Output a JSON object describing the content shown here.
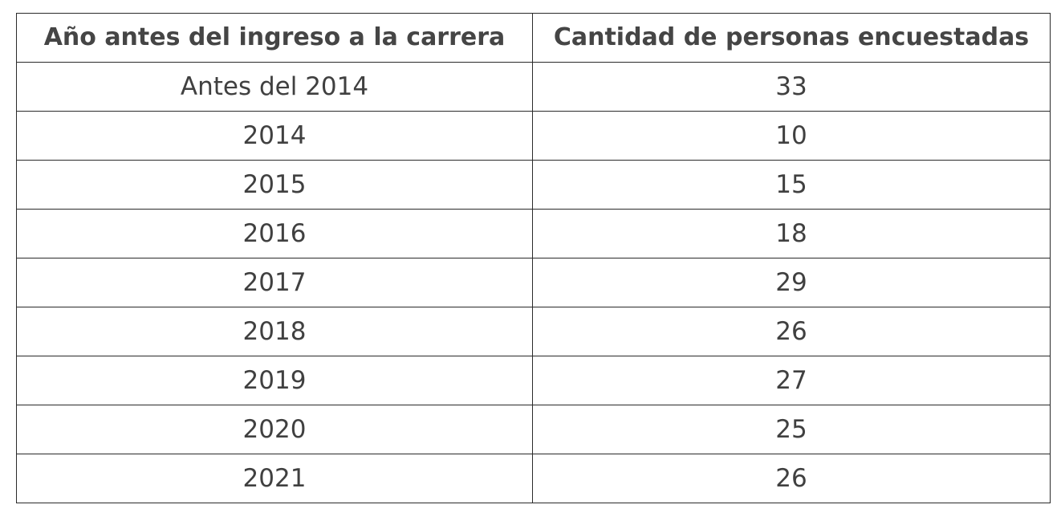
{
  "table": {
    "headers": [
      "Año antes del ingreso a la carrera",
      "Cantidad de personas encuestadas"
    ],
    "rows": [
      [
        "Antes del 2014",
        "33"
      ],
      [
        "2014",
        "10"
      ],
      [
        "2015",
        "15"
      ],
      [
        "2016",
        "18"
      ],
      [
        "2017",
        "29"
      ],
      [
        "2018",
        "26"
      ],
      [
        "2019",
        "27"
      ],
      [
        "2020",
        "25"
      ],
      [
        "2021",
        "26"
      ]
    ]
  }
}
